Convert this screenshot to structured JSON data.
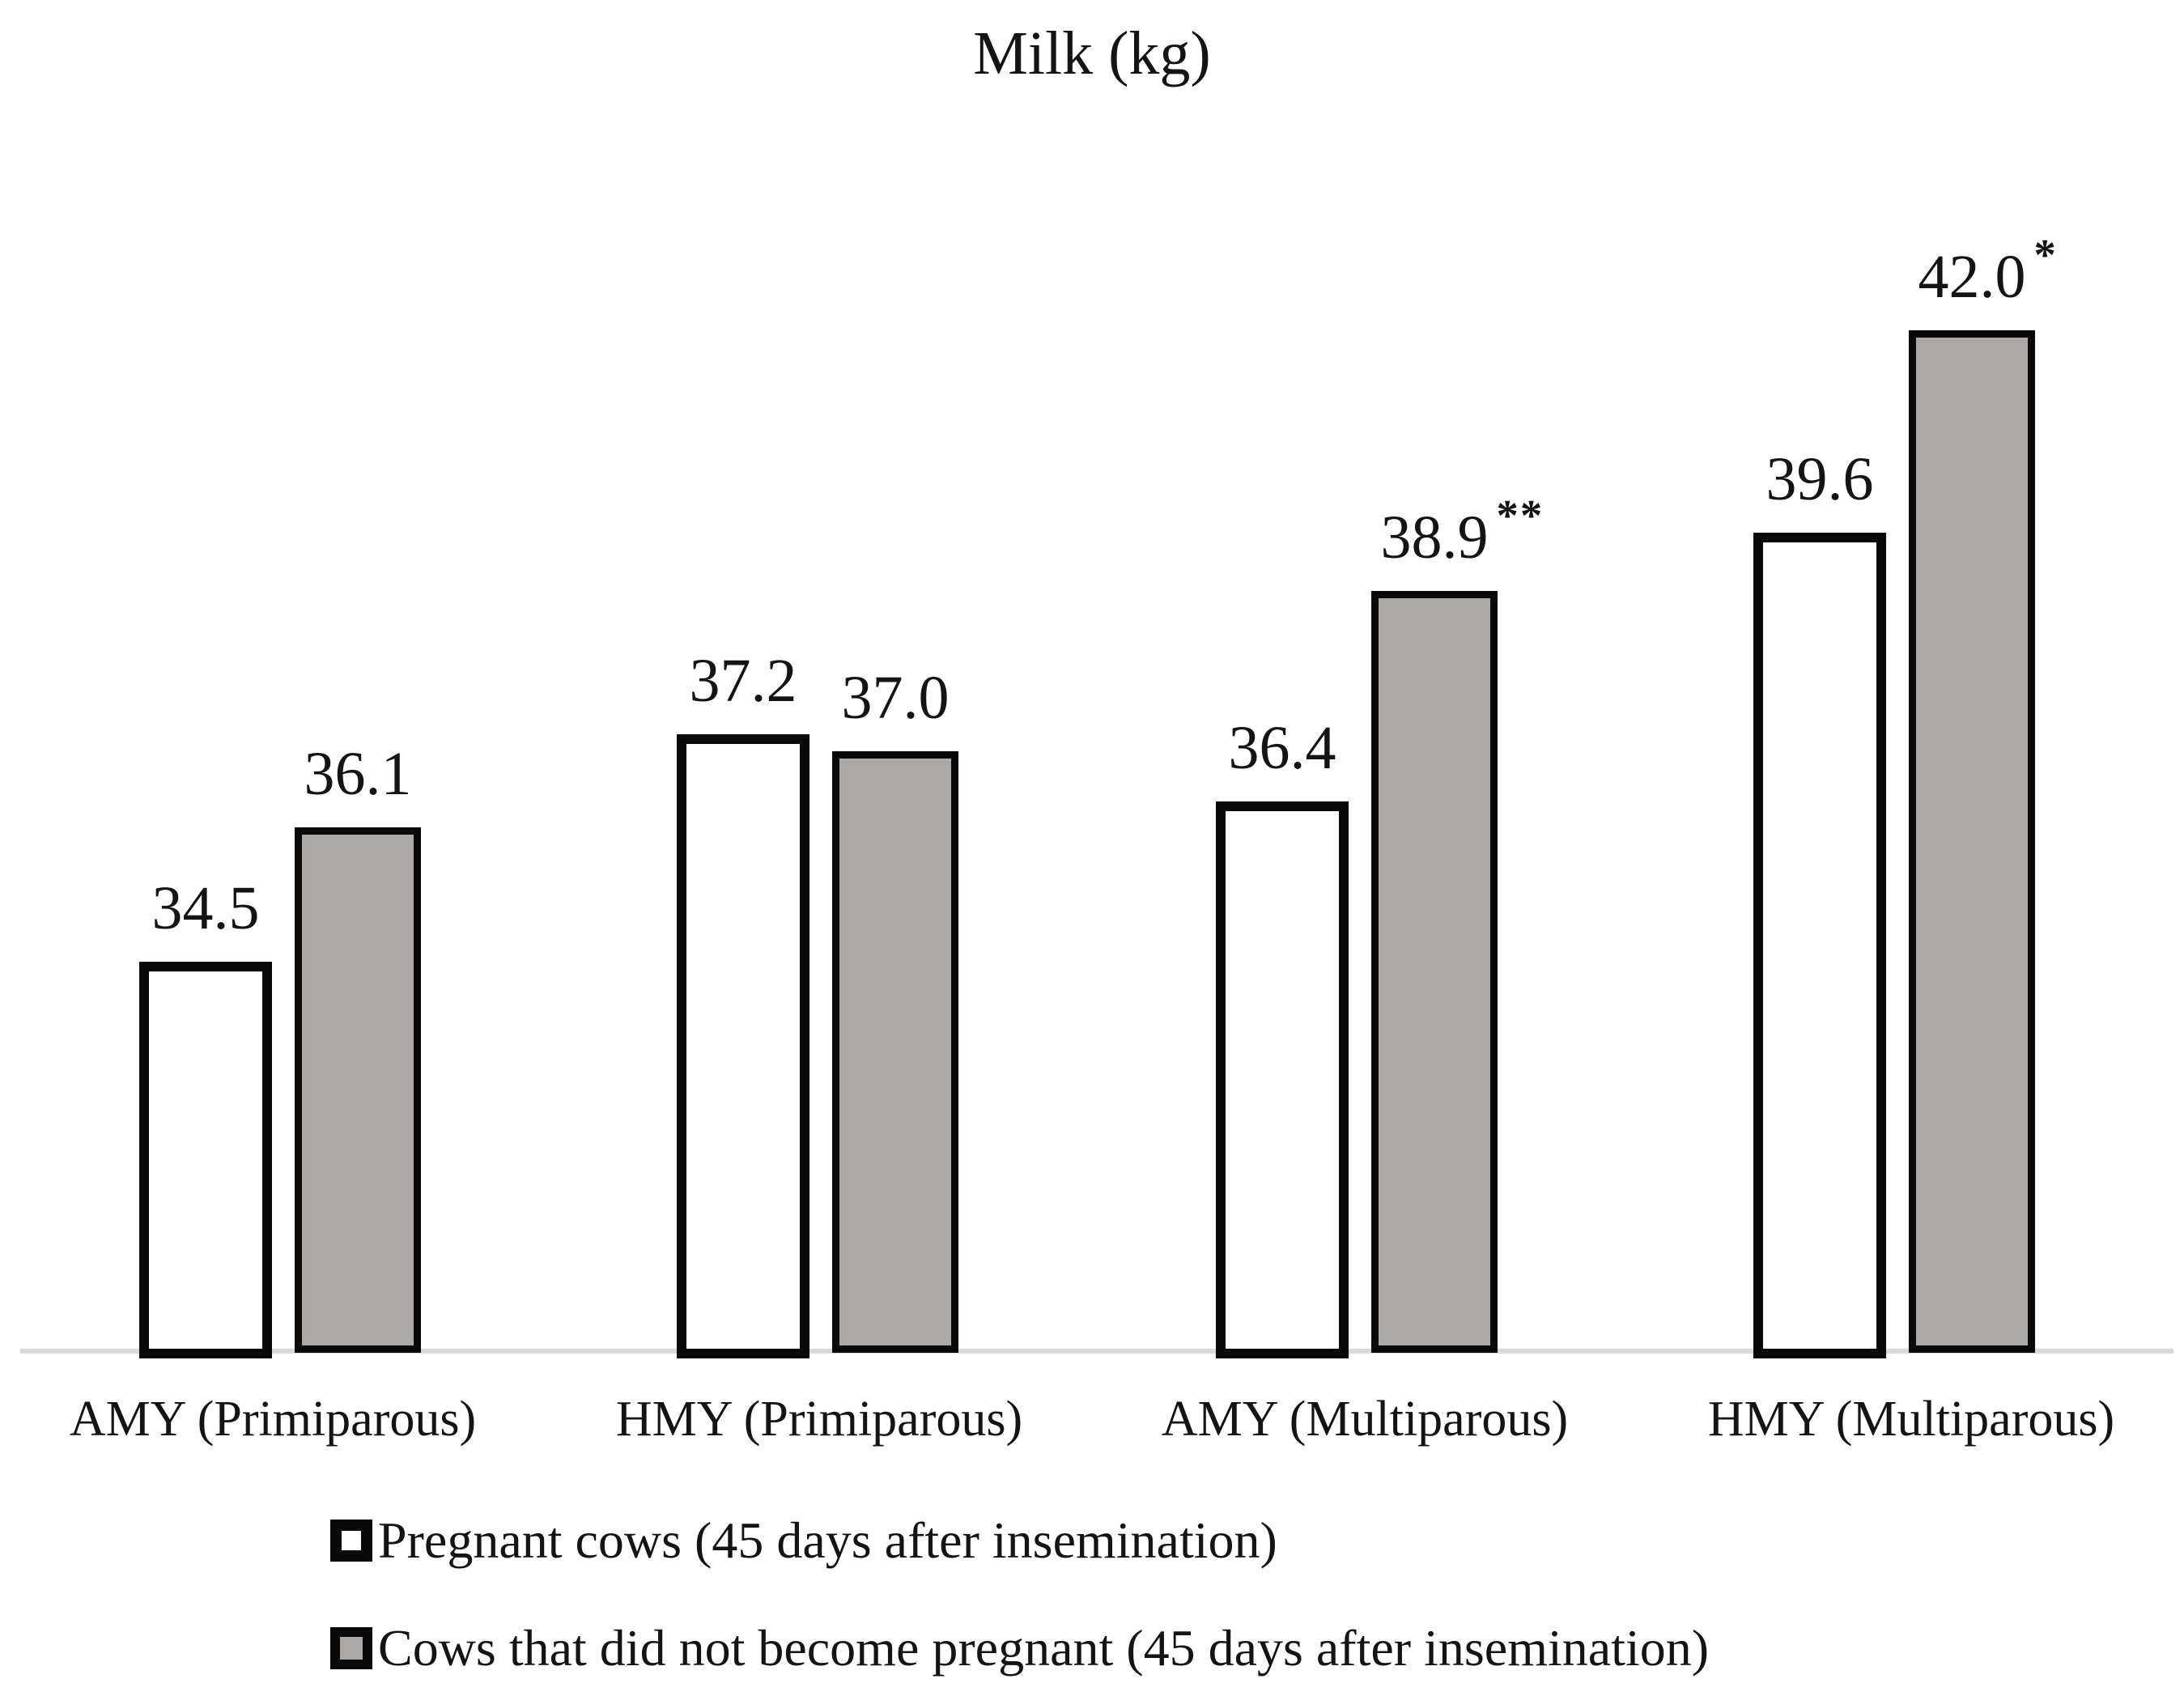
{
  "title": "Milk (kg)",
  "chart_data": {
    "type": "bar",
    "title": "Milk (kg)",
    "categories": [
      "AMY (Primiparous)",
      "HMY (Primiparous)",
      "AMY (Multiparous)",
      "HMY (Multiparous)"
    ],
    "series": [
      {
        "name": "Pregnant cows (45 days after insemination)",
        "values": [
          34.5,
          37.2,
          36.4,
          39.6
        ],
        "labels": [
          "34.5",
          "37.2",
          "36.4",
          "39.6"
        ],
        "annotations": [
          "",
          "",
          "",
          ""
        ],
        "fill": "#ffffff",
        "border": "#0a0a0a"
      },
      {
        "name": "Cows that did not become pregnant (45 days after insemination)",
        "values": [
          36.1,
          37.0,
          38.9,
          42.0
        ],
        "labels": [
          "36.1",
          "37.0",
          "38.9",
          "42.0"
        ],
        "annotations": [
          "",
          "",
          "**",
          "*"
        ],
        "fill": "#aba8a5",
        "border": "#0a0a0a"
      }
    ],
    "ylim": [
      29.9,
      44
    ],
    "xlabel": "",
    "ylabel": "Milk (kg)",
    "grid": false,
    "value_labels": true,
    "legend_position": "bottom-left",
    "axis_line_color": "#d9d9d9",
    "text_color": "#141414"
  }
}
